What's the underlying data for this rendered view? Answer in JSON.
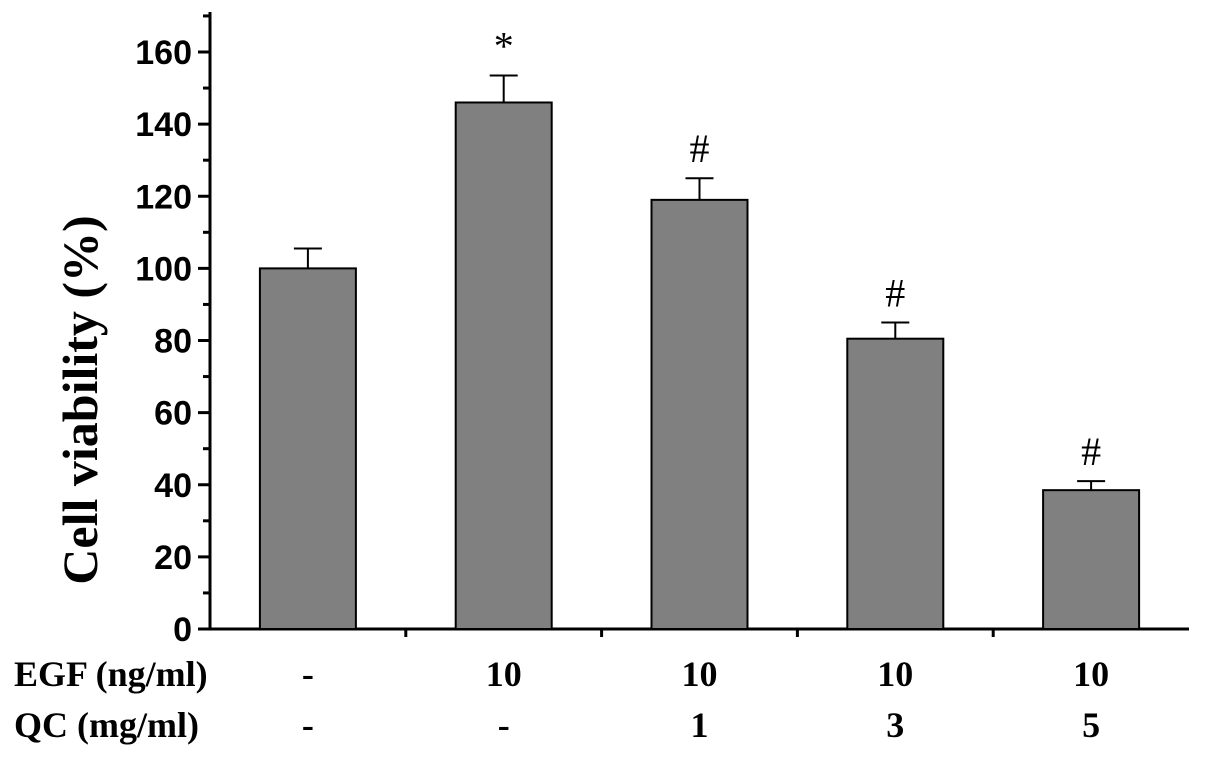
{
  "chart_data": {
    "type": "bar",
    "title": "",
    "xlabel": "",
    "ylabel": "Cell viability (%)",
    "ylim": [
      0,
      170
    ],
    "yticks": [
      0,
      20,
      40,
      60,
      80,
      100,
      120,
      140,
      160
    ],
    "grid": false,
    "categories": [
      "1",
      "2",
      "3",
      "4",
      "5"
    ],
    "values": [
      100,
      146,
      119,
      80.5,
      38.5
    ],
    "errors": [
      5.5,
      7.5,
      6,
      4.5,
      2.5
    ],
    "annotations": [
      "",
      "*",
      "#",
      "#",
      "#"
    ],
    "bar_color": "#808080",
    "condition_rows": [
      {
        "label": "EGF (ng/ml)",
        "values": [
          "-",
          "10",
          "10",
          "10",
          "10"
        ]
      },
      {
        "label": "QC (mg/ml)",
        "values": [
          "-",
          "-",
          "1",
          "3",
          "5"
        ]
      }
    ]
  }
}
